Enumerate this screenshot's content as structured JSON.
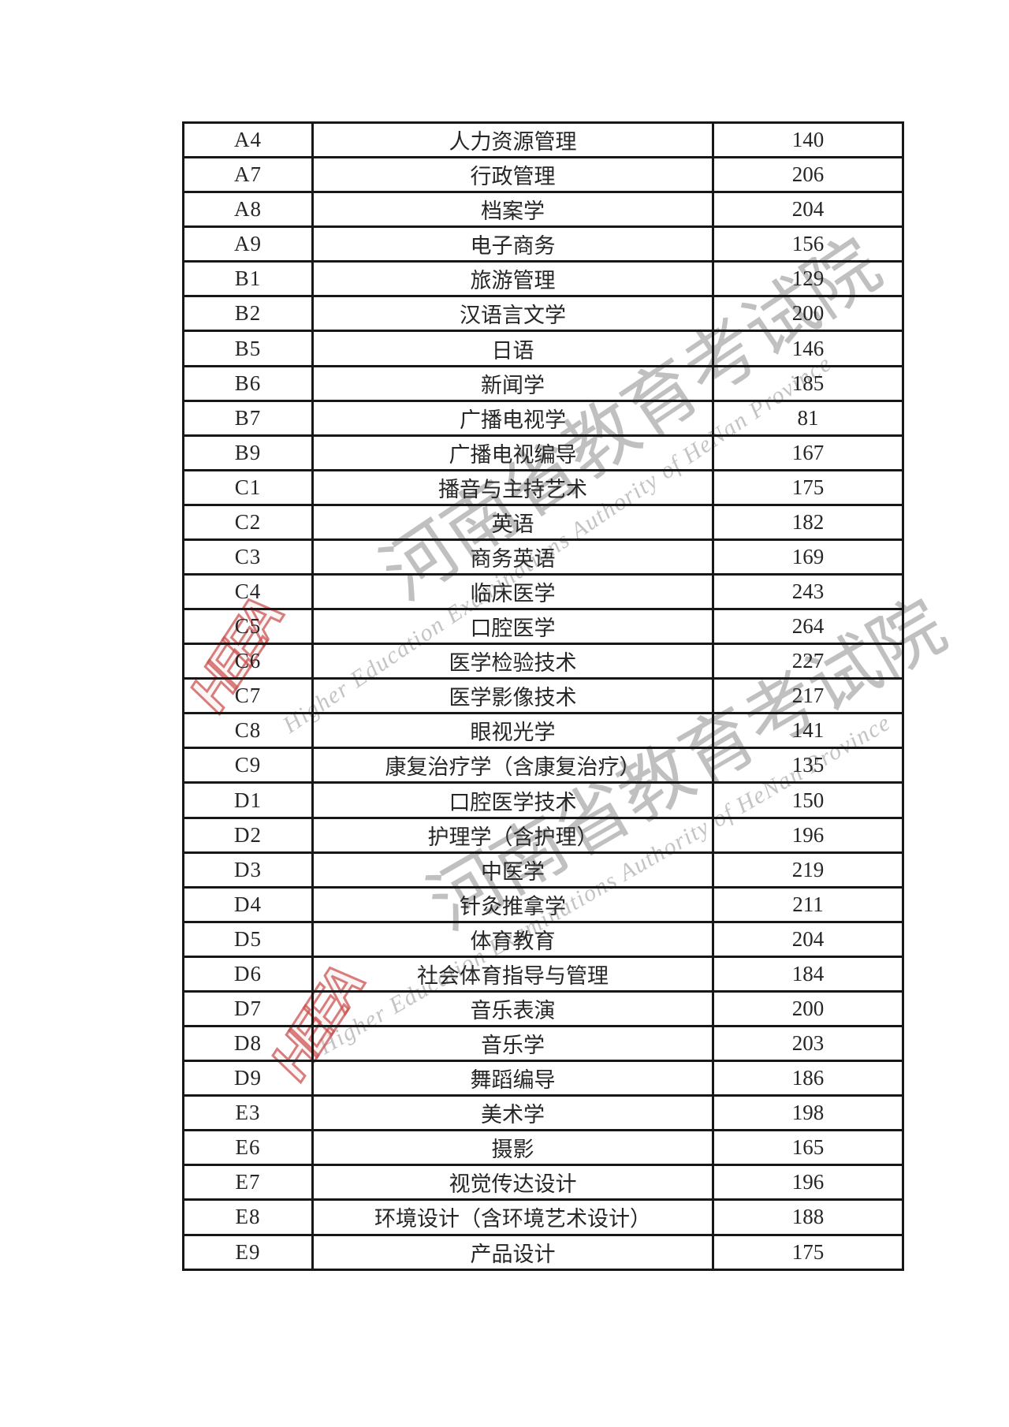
{
  "colors": {
    "page_bg": "#ffffff",
    "border_color": "#171717",
    "text_color": "#262626",
    "wm_gray": "#b3b3b3",
    "wm_gray_light": "#bdbdbd",
    "wm_red": "#cb5252"
  },
  "watermark": {
    "cn_text": "河南省教育考试院",
    "en_text": "Higher Education Examinations Authority of HeNan Province",
    "logo_text": "HEEA"
  },
  "table": {
    "rows": [
      {
        "code": "A4",
        "major": "人力资源管理",
        "score": 140
      },
      {
        "code": "A7",
        "major": "行政管理",
        "score": 206
      },
      {
        "code": "A8",
        "major": "档案学",
        "score": 204
      },
      {
        "code": "A9",
        "major": "电子商务",
        "score": 156
      },
      {
        "code": "B1",
        "major": "旅游管理",
        "score": 129
      },
      {
        "code": "B2",
        "major": "汉语言文学",
        "score": 200
      },
      {
        "code": "B5",
        "major": "日语",
        "score": 146
      },
      {
        "code": "B6",
        "major": "新闻学",
        "score": 185
      },
      {
        "code": "B7",
        "major": "广播电视学",
        "score": 81
      },
      {
        "code": "B9",
        "major": "广播电视编导",
        "score": 167
      },
      {
        "code": "C1",
        "major": "播音与主持艺术",
        "score": 175
      },
      {
        "code": "C2",
        "major": "英语",
        "score": 182
      },
      {
        "code": "C3",
        "major": "商务英语",
        "score": 169
      },
      {
        "code": "C4",
        "major": "临床医学",
        "score": 243
      },
      {
        "code": "C5",
        "major": "口腔医学",
        "score": 264
      },
      {
        "code": "C6",
        "major": "医学检验技术",
        "score": 227
      },
      {
        "code": "C7",
        "major": "医学影像技术",
        "score": 217
      },
      {
        "code": "C8",
        "major": "眼视光学",
        "score": 141
      },
      {
        "code": "C9",
        "major": "康复治疗学（含康复治疗）",
        "score": 135
      },
      {
        "code": "D1",
        "major": "口腔医学技术",
        "score": 150
      },
      {
        "code": "D2",
        "major": "护理学（含护理）",
        "score": 196
      },
      {
        "code": "D3",
        "major": "中医学",
        "score": 219
      },
      {
        "code": "D4",
        "major": "针灸推拿学",
        "score": 211
      },
      {
        "code": "D5",
        "major": "体育教育",
        "score": 204
      },
      {
        "code": "D6",
        "major": "社会体育指导与管理",
        "score": 184
      },
      {
        "code": "D7",
        "major": "音乐表演",
        "score": 200
      },
      {
        "code": "D8",
        "major": "音乐学",
        "score": 203
      },
      {
        "code": "D9",
        "major": "舞蹈编导",
        "score": 186
      },
      {
        "code": "E3",
        "major": "美术学",
        "score": 198
      },
      {
        "code": "E6",
        "major": "摄影",
        "score": 165
      },
      {
        "code": "E7",
        "major": "视觉传达设计",
        "score": 196
      },
      {
        "code": "E8",
        "major": "环境设计（含环境艺术设计）",
        "score": 188
      },
      {
        "code": "E9",
        "major": "产品设计",
        "score": 175
      }
    ]
  }
}
